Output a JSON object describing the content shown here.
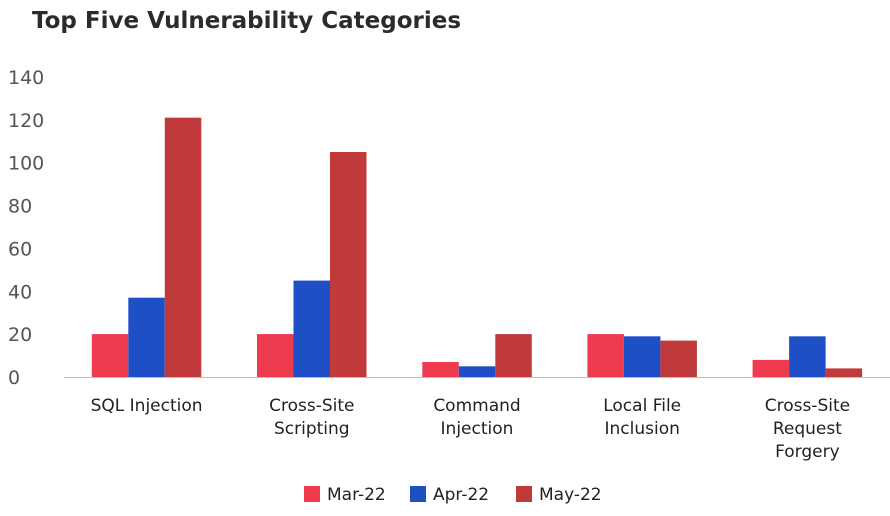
{
  "chart_data": {
    "type": "bar",
    "title": "Top Five Vulnerability Categories",
    "xlabel": "",
    "ylabel": "",
    "ylim": [
      0,
      140
    ],
    "yticks": [
      0,
      20,
      40,
      60,
      80,
      100,
      120,
      140
    ],
    "grid": false,
    "legend_position": "bottom",
    "categories": [
      [
        "SQL Injection"
      ],
      [
        "Cross-Site",
        "Scripting"
      ],
      [
        "Command",
        "Injection"
      ],
      [
        "Local File",
        "Inclusion"
      ],
      [
        "Cross-Site",
        "Request",
        "Forgery"
      ]
    ],
    "series": [
      {
        "name": "Mar-22",
        "color": "#ef3b4f",
        "values": [
          20,
          20,
          7,
          20,
          8
        ]
      },
      {
        "name": "Apr-22",
        "color": "#1f4fc4",
        "values": [
          37,
          45,
          5,
          19,
          19
        ]
      },
      {
        "name": "May-22",
        "color": "#c0393b",
        "values": [
          121,
          105,
          20,
          17,
          4
        ]
      }
    ]
  }
}
